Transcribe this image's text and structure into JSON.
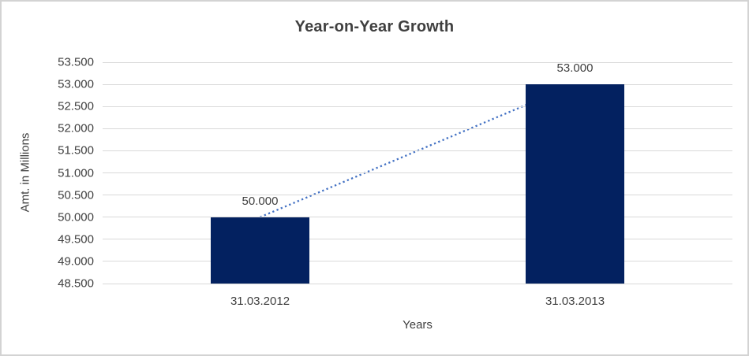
{
  "chart_data": {
    "type": "bar",
    "title": "Year-on-Year Growth",
    "xlabel": "Years",
    "ylabel": "Amt. in Millions",
    "categories": [
      "31.03.2012",
      "31.03.2013"
    ],
    "values": [
      50.0,
      53.0
    ],
    "value_labels": [
      "50.000",
      "53.000"
    ],
    "ylim": [
      48.5,
      53.5
    ],
    "yticks": [
      48.5,
      49.0,
      49.5,
      50.0,
      50.5,
      51.0,
      51.5,
      52.0,
      52.5,
      53.0,
      53.5
    ],
    "ytick_labels": [
      "48.500",
      "49.000",
      "49.500",
      "50.000",
      "50.500",
      "51.000",
      "51.500",
      "52.000",
      "52.500",
      "53.000",
      "53.500"
    ],
    "grid": "horizontal",
    "legend": "none",
    "trendline": {
      "style": "dotted",
      "from_value": 50.0,
      "to_value": 53.0
    },
    "colors": {
      "bar": "#032160",
      "trendline": "#4472c4",
      "gridline": "#d9d9d9",
      "text": "#404040",
      "title": "#3f3f3f",
      "frame": "#d3d3d3",
      "background": "#ffffff"
    }
  }
}
